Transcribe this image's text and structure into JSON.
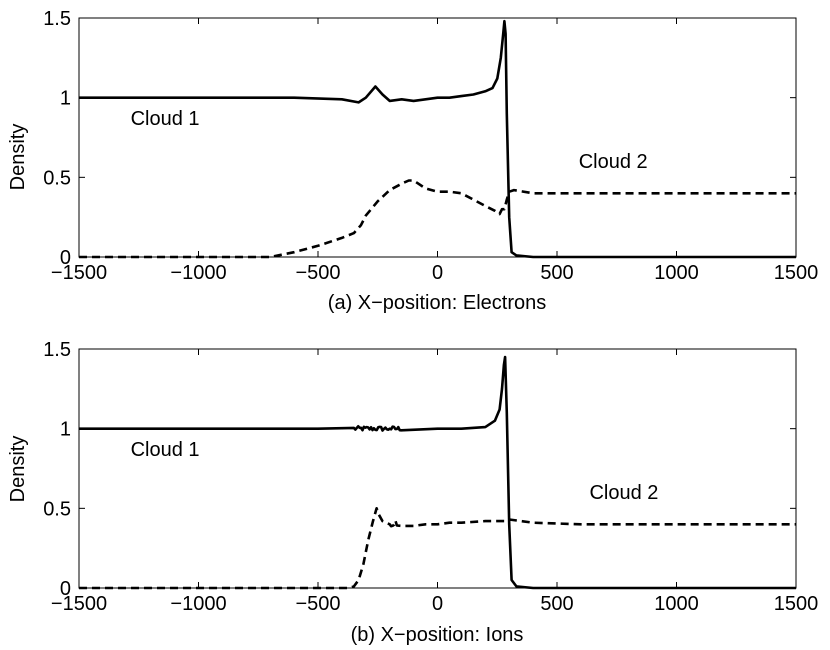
{
  "chart_data": [
    {
      "type": "line",
      "xlabel": "(a) X−position: Electrons",
      "ylabel": "Density",
      "xlim": [
        -1500,
        1500
      ],
      "ylim": [
        0,
        1.5
      ],
      "xticks": [
        "−1500",
        "−1000",
        "−500",
        "0",
        "500",
        "1000",
        "1500"
      ],
      "yticks": [
        "0",
        "0.5",
        "1",
        "1.5"
      ],
      "grid": false,
      "annotations": [
        {
          "text": "Cloud 1",
          "x": -1140,
          "y": 0.83
        },
        {
          "text": "Cloud 2",
          "x": 735,
          "y": 0.56
        }
      ],
      "series": [
        {
          "style": "solid",
          "x": [
            -1500,
            -1000,
            -600,
            -400,
            -330,
            -300,
            -260,
            -230,
            -200,
            -150,
            -100,
            -50,
            0,
            50,
            100,
            150,
            200,
            230,
            250,
            265,
            275,
            280,
            285,
            290,
            300,
            310,
            330,
            400,
            600,
            1000,
            1500
          ],
          "y": [
            1.0,
            1.0,
            1.0,
            0.99,
            0.97,
            1.0,
            1.07,
            1.02,
            0.98,
            0.99,
            0.98,
            0.99,
            1.0,
            1.0,
            1.01,
            1.02,
            1.04,
            1.06,
            1.12,
            1.25,
            1.4,
            1.48,
            1.4,
            0.9,
            0.25,
            0.03,
            0.01,
            0.0,
            0.0,
            0.0,
            0.0
          ]
        },
        {
          "style": "dashed",
          "x": [
            -1500,
            -1000,
            -700,
            -600,
            -500,
            -400,
            -350,
            -320,
            -300,
            -250,
            -200,
            -150,
            -120,
            -100,
            -80,
            -50,
            0,
            50,
            100,
            150,
            200,
            240,
            260,
            270,
            280,
            290,
            300,
            320,
            400,
            600,
            1000,
            1500
          ],
          "y": [
            0.0,
            0.0,
            0.0,
            0.03,
            0.07,
            0.12,
            0.15,
            0.2,
            0.26,
            0.35,
            0.42,
            0.46,
            0.48,
            0.48,
            0.46,
            0.43,
            0.41,
            0.41,
            0.4,
            0.36,
            0.32,
            0.29,
            0.27,
            0.3,
            0.3,
            0.36,
            0.41,
            0.42,
            0.4,
            0.4,
            0.4,
            0.4
          ]
        }
      ]
    },
    {
      "type": "line",
      "xlabel": "(b) X−position: Ions",
      "ylabel": "Density",
      "xlim": [
        -1500,
        1500
      ],
      "ylim": [
        0,
        1.5
      ],
      "xticks": [
        "−1500",
        "−1000",
        "−500",
        "0",
        "500",
        "1000",
        "1500"
      ],
      "yticks": [
        "0",
        "0.5",
        "1",
        "1.5"
      ],
      "grid": false,
      "annotations": [
        {
          "text": "Cloud 1",
          "x": -1140,
          "y": 0.83
        },
        {
          "text": "Cloud 2",
          "x": 780,
          "y": 0.56
        }
      ],
      "series": [
        {
          "style": "solid",
          "x": [
            -1500,
            -1000,
            -500,
            -200,
            0,
            100,
            200,
            240,
            260,
            270,
            278,
            283,
            290,
            300,
            310,
            330,
            400,
            600,
            1000,
            1500
          ],
          "y": [
            1.0,
            1.0,
            1.0,
            1.0,
            1.0,
            1.0,
            1.01,
            1.05,
            1.12,
            1.25,
            1.4,
            1.45,
            1.1,
            0.4,
            0.05,
            0.01,
            0.0,
            0.0,
            0.0,
            0.0
          ],
          "noise": [
            [
              -250,
              50,
              0.015
            ]
          ]
        },
        {
          "style": "dashed",
          "x": [
            -1500,
            -1000,
            -500,
            -370,
            -350,
            -330,
            -310,
            -290,
            -270,
            -255,
            -245,
            -230,
            -200,
            -150,
            -100,
            -50,
            0,
            50,
            100,
            200,
            280,
            300,
            400,
            600,
            1000,
            1500
          ],
          "y": [
            0.0,
            0.0,
            0.0,
            0.0,
            0.01,
            0.05,
            0.15,
            0.3,
            0.42,
            0.5,
            0.46,
            0.42,
            0.4,
            0.39,
            0.39,
            0.4,
            0.4,
            0.41,
            0.41,
            0.42,
            0.42,
            0.43,
            0.41,
            0.4,
            0.4,
            0.4
          ],
          "noise": [
            [
              -230,
              30,
              0.03
            ]
          ]
        }
      ]
    }
  ]
}
